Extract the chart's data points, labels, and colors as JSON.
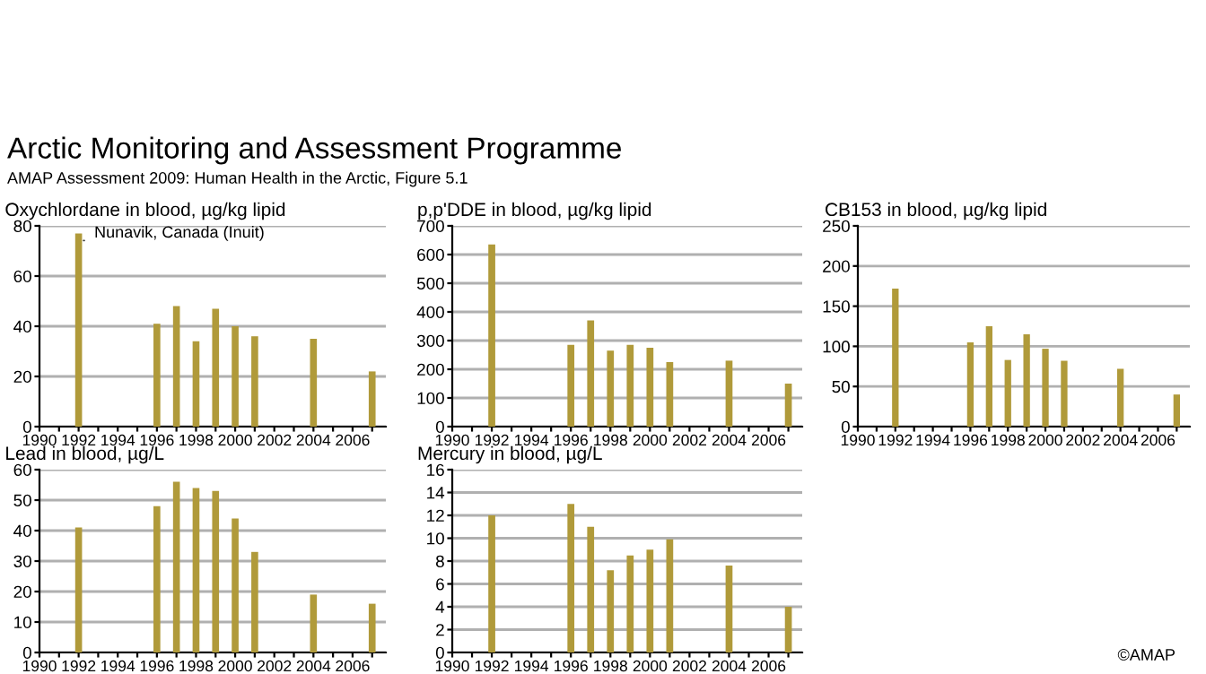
{
  "chart_data": [
    {
      "type": "bar",
      "title": "Oxychlordane in blood, µg/kg lipid",
      "x": [
        1992,
        1996,
        1997,
        1998,
        1999,
        2000,
        2001,
        2004,
        2007
      ],
      "values": [
        77,
        41,
        48,
        34,
        47,
        40,
        36,
        35,
        22
      ],
      "color": "#b09a3a",
      "xlim": [
        1990,
        2007.7
      ],
      "xticks": [
        1990,
        {
          "value": 1991,
          "label": null
        },
        1992,
        {
          "value": 1993,
          "label": null
        },
        1994,
        {
          "value": 1995,
          "label": null
        },
        1996,
        {
          "value": 1997,
          "label": null
        },
        1998,
        {
          "value": 1999,
          "label": null
        },
        2000,
        {
          "value": 2001,
          "label": null
        },
        2002,
        {
          "value": 2003,
          "label": null
        },
        2004,
        {
          "value": 2005,
          "label": null
        },
        2006,
        {
          "value": 2007,
          "label": null
        }
      ],
      "ylim": [
        0,
        80
      ],
      "yticks": [
        0,
        20,
        40,
        60,
        80
      ],
      "grid": "y",
      "subtitle": "AMAP Assessment 2009: Human Health in the Arctic, Figure 5.1",
      "annotations": [
        "Arctic Monitoring and Assessment Programme",
        {
          "text": "Nunavik, Canada (Inuit)",
          "x": 1992,
          "y": 77
        }
      ]
    },
    {
      "type": "bar",
      "title": "p,p'DDE in blood, µg/kg lipid",
      "x": [
        1992,
        1996,
        1997,
        1998,
        1999,
        2000,
        2001,
        2004,
        2007
      ],
      "values": [
        635,
        285,
        370,
        265,
        285,
        275,
        225,
        230,
        150
      ],
      "color": "#b09a3a",
      "xlim": [
        1990,
        2007.7
      ],
      "xticks": [
        1990,
        {
          "value": 1991,
          "label": null
        },
        1992,
        {
          "value": 1993,
          "label": null
        },
        1994,
        {
          "value": 1995,
          "label": null
        },
        1996,
        {
          "value": 1997,
          "label": null
        },
        1998,
        {
          "value": 1999,
          "label": null
        },
        2000,
        {
          "value": 2001,
          "label": null
        },
        2002,
        {
          "value": 2003,
          "label": null
        },
        2004,
        {
          "value": 2005,
          "label": null
        },
        2006,
        {
          "value": 2007,
          "label": null
        }
      ],
      "ylim": [
        0,
        700
      ],
      "yticks": [
        0,
        100,
        200,
        300,
        400,
        500,
        600,
        700
      ],
      "grid": "y"
    },
    {
      "type": "bar",
      "title": "CB153 in blood, µg/kg lipid",
      "x": [
        1992,
        1996,
        1997,
        1998,
        1999,
        2000,
        2001,
        2004,
        2007
      ],
      "values": [
        172,
        105,
        125,
        83,
        115,
        97,
        82,
        72,
        40
      ],
      "color": "#b09a3a",
      "xlim": [
        1990,
        2007.7
      ],
      "xticks": [
        1990,
        {
          "value": 1991,
          "label": null
        },
        1992,
        {
          "value": 1993,
          "label": null
        },
        1994,
        {
          "value": 1995,
          "label": null
        },
        1996,
        {
          "value": 1997,
          "label": null
        },
        1998,
        {
          "value": 1999,
          "label": null
        },
        2000,
        {
          "value": 2001,
          "label": null
        },
        2002,
        {
          "value": 2003,
          "label": null
        },
        2004,
        {
          "value": 2005,
          "label": null
        },
        2006,
        {
          "value": 2007,
          "label": null
        }
      ],
      "ylim": [
        0,
        250
      ],
      "yticks": [
        0,
        50,
        100,
        150,
        200,
        250
      ],
      "grid": "y"
    },
    {
      "type": "bar",
      "title": "Lead in blood, µg/L",
      "x": [
        1992,
        1996,
        1997,
        1998,
        1999,
        2000,
        2001,
        2004,
        2007
      ],
      "values": [
        41,
        48,
        56,
        54,
        53,
        44,
        33,
        19,
        16
      ],
      "color": "#b09a3a",
      "xlim": [
        1990,
        2007.7
      ],
      "xticks": [
        1990,
        {
          "value": 1991,
          "label": null
        },
        1992,
        {
          "value": 1993,
          "label": null
        },
        1994,
        {
          "value": 1995,
          "label": null
        },
        1996,
        {
          "value": 1997,
          "label": null
        },
        1998,
        {
          "value": 1999,
          "label": null
        },
        2000,
        {
          "value": 2001,
          "label": null
        },
        2002,
        {
          "value": 2003,
          "label": null
        },
        2004,
        {
          "value": 2005,
          "label": null
        },
        2006,
        {
          "value": 2007,
          "label": null
        }
      ],
      "ylim": [
        0,
        60
      ],
      "yticks": [
        0,
        10,
        20,
        30,
        40,
        50,
        60
      ],
      "grid": "y"
    },
    {
      "type": "bar",
      "title": "Mercury in blood, µg/L",
      "x": [
        1992,
        1996,
        1997,
        1998,
        1999,
        2000,
        2001,
        2004,
        2007
      ],
      "values": [
        12,
        13,
        11,
        7.2,
        8.5,
        9,
        9.9,
        7.6,
        4
      ],
      "color": "#b09a3a",
      "xlim": [
        1990,
        2007.7
      ],
      "xticks": [
        1990,
        {
          "value": 1991,
          "label": null
        },
        1992,
        {
          "value": 1993,
          "label": null
        },
        1994,
        {
          "value": 1995,
          "label": null
        },
        1996,
        {
          "value": 1997,
          "label": null
        },
        1998,
        {
          "value": 1999,
          "label": null
        },
        2000,
        {
          "value": 2001,
          "label": null
        },
        2002,
        {
          "value": 2003,
          "label": null
        },
        2004,
        {
          "value": 2005,
          "label": null
        },
        2006,
        {
          "value": 2007,
          "label": null
        }
      ],
      "ylim": [
        0,
        16
      ],
      "yticks": [
        0,
        2,
        4,
        6,
        8,
        10,
        12,
        14,
        16
      ],
      "grid": "y",
      "annotations": [
        "©AMAP"
      ]
    }
  ]
}
